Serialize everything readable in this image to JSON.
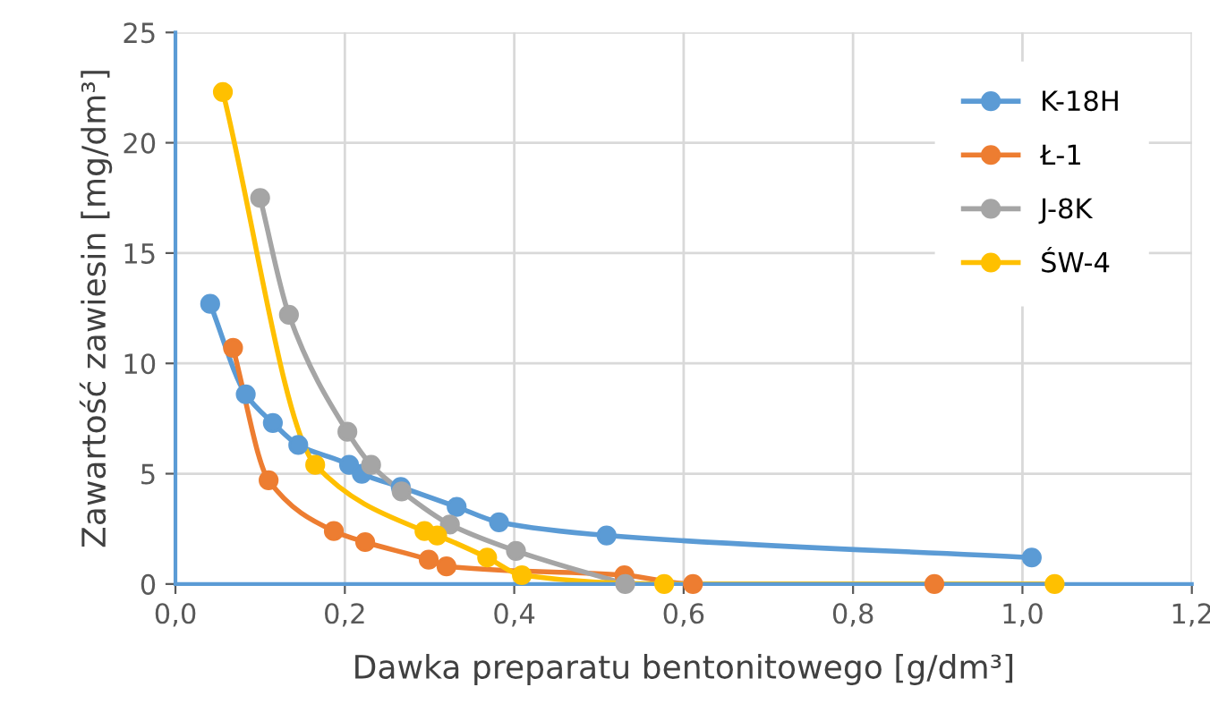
{
  "chart_data": {
    "type": "line",
    "xlabel": "Dawka preparatu bentonitowego [g/dm³]",
    "ylabel": "Zawartość zawiesin [mg/dm³]",
    "xlim": [
      0,
      1.2
    ],
    "xticks": [
      {
        "value": 0,
        "label": "0,0"
      },
      {
        "value": 0.2,
        "label": "0,2"
      },
      {
        "value": 0.4,
        "label": "0,4"
      },
      {
        "value": 0.6,
        "label": "0,6"
      },
      {
        "value": 0.8,
        "label": "0,8"
      },
      {
        "value": 1.0,
        "label": "1,0"
      },
      {
        "value": 1.2,
        "label": "1,2"
      }
    ],
    "ylim": [
      0,
      25
    ],
    "yticks": [
      0,
      5,
      10,
      15,
      20,
      25
    ],
    "grid": true,
    "legend": "top right",
    "marker": "circle",
    "line_style": "solid",
    "series": [
      {
        "name": "K-18H",
        "color": "#5b9bd5",
        "x": [
          0.041,
          0.083,
          0.115,
          0.145,
          0.205,
          0.22,
          0.266,
          0.332,
          0.382,
          0.509,
          1.011
        ],
        "values": [
          12.7,
          8.6,
          7.3,
          6.3,
          5.4,
          5.0,
          4.4,
          3.5,
          2.8,
          2.2,
          1.2
        ]
      },
      {
        "name": "Ł-1",
        "color": "#ed7d31",
        "x": [
          0.068,
          0.11,
          0.187,
          0.224,
          0.299,
          0.32,
          0.53,
          0.611,
          0.896
        ],
        "values": [
          10.7,
          4.7,
          2.4,
          1.9,
          1.1,
          0.8,
          0.4,
          0,
          0
        ]
      },
      {
        "name": "J-8K",
        "color": "#a5a5a5",
        "x": [
          0.1,
          0.134,
          0.203,
          0.231,
          0.267,
          0.324,
          0.402,
          0.531
        ],
        "values": [
          17.5,
          12.2,
          6.9,
          5.4,
          4.2,
          2.7,
          1.5,
          0
        ]
      },
      {
        "name": "ŚW-4",
        "color": "#ffc000",
        "x": [
          0.056,
          0.165,
          0.294,
          0.309,
          0.368,
          0.409,
          0.577,
          1.038
        ],
        "values": [
          22.3,
          5.4,
          2.4,
          2.2,
          1.2,
          0.4,
          0,
          0
        ]
      }
    ]
  }
}
